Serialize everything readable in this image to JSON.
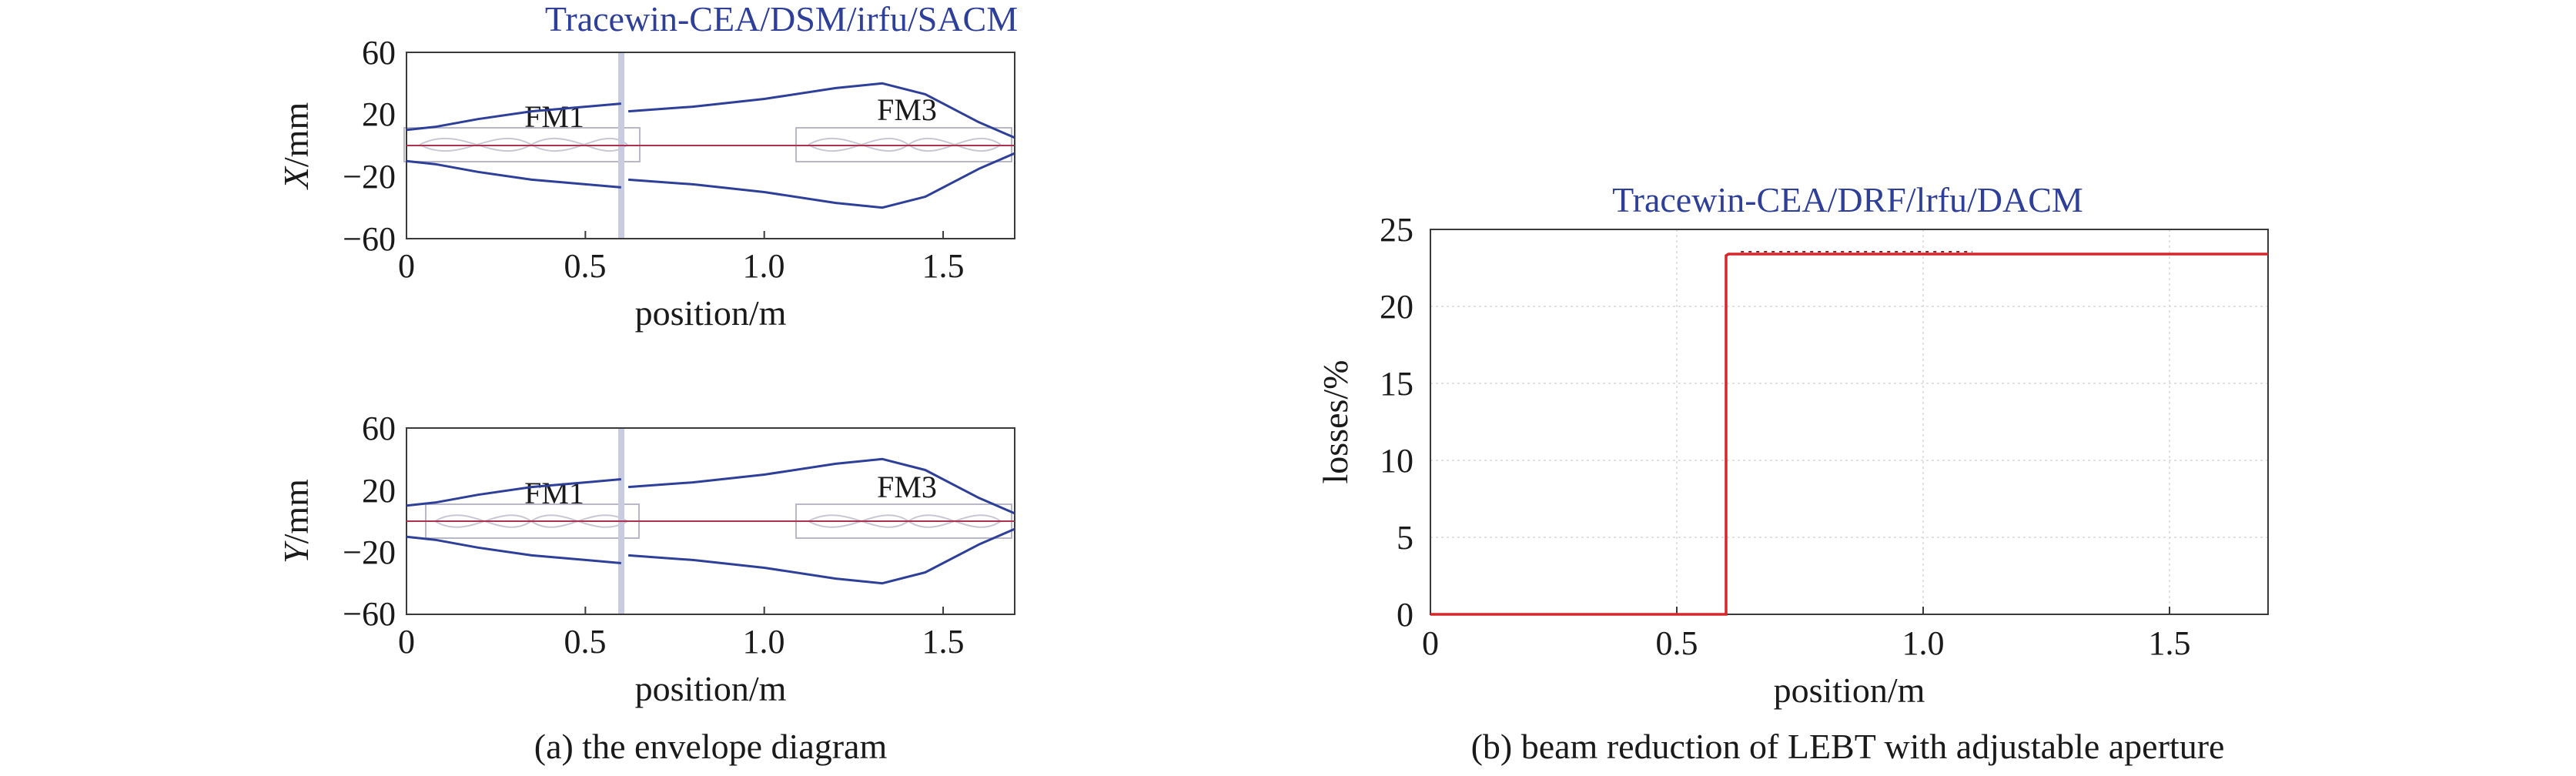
{
  "chart_data": [
    {
      "type": "line",
      "title": "Tracewin-CEA/DSM/irfu/SACM",
      "xlabel": "position/m",
      "ylabel_italic": "X",
      "ylabel_rest": "/mm",
      "xlim": [
        0,
        1.7
      ],
      "ylim": [
        -60,
        60
      ],
      "xticks": [
        "0",
        "0.5",
        "1.0",
        "1.5"
      ],
      "yticks": [
        "60",
        "20",
        "−20",
        "−60"
      ],
      "annotations": [
        "FM1",
        "FM3"
      ],
      "series": [
        {
          "x": [
            0,
            0.08,
            0.2,
            0.35,
            0.5,
            0.6
          ],
          "values": [
            10,
            12,
            17,
            22,
            25,
            27
          ]
        },
        {
          "x": [
            0.62,
            0.8,
            1.0,
            1.2,
            1.33,
            1.45,
            1.6,
            1.7
          ],
          "values": [
            22,
            25,
            30,
            37,
            40,
            33,
            15,
            5
          ]
        },
        {
          "x": [
            0,
            0.08,
            0.2,
            0.35,
            0.5,
            0.6
          ],
          "values": [
            -10,
            -12,
            -17,
            -22,
            -25,
            -27
          ]
        },
        {
          "x": [
            0.62,
            0.8,
            1.0,
            1.2,
            1.33,
            1.45,
            1.6,
            1.7
          ],
          "values": [
            -22,
            -25,
            -30,
            -37,
            -40,
            -33,
            -15,
            -5
          ]
        }
      ],
      "caption": ""
    },
    {
      "type": "line",
      "title": "",
      "xlabel": "position/m",
      "ylabel_italic": "Y",
      "ylabel_rest": "/mm",
      "xlim": [
        0,
        1.7
      ],
      "ylim": [
        -60,
        60
      ],
      "xticks": [
        "0",
        "0.5",
        "1.0",
        "1.5"
      ],
      "yticks": [
        "60",
        "20",
        "−20",
        "−60"
      ],
      "annotations": [
        "FM1",
        "FM3"
      ],
      "series": [
        {
          "x": [
            0,
            0.08,
            0.2,
            0.35,
            0.5,
            0.6
          ],
          "values": [
            10,
            12,
            17,
            22,
            25,
            27
          ]
        },
        {
          "x": [
            0.62,
            0.8,
            1.0,
            1.2,
            1.33,
            1.45,
            1.6,
            1.7
          ],
          "values": [
            22,
            25,
            30,
            37,
            40,
            33,
            15,
            5
          ]
        },
        {
          "x": [
            0,
            0.08,
            0.2,
            0.35,
            0.5,
            0.6
          ],
          "values": [
            -10,
            -12,
            -17,
            -22,
            -25,
            -27
          ]
        },
        {
          "x": [
            0.62,
            0.8,
            1.0,
            1.2,
            1.33,
            1.45,
            1.6,
            1.7
          ],
          "values": [
            -22,
            -25,
            -30,
            -37,
            -40,
            -33,
            -15,
            -5
          ]
        }
      ],
      "caption": "(a) the envelope diagram"
    },
    {
      "type": "line",
      "title": "Tracewin-CEA/DRF/lrfu/DACM",
      "xlabel": "position/m",
      "ylabel": "losses/%",
      "xlim": [
        0,
        1.7
      ],
      "ylim": [
        0,
        25
      ],
      "xticks": [
        "0",
        "0.5",
        "1.0",
        "1.5"
      ],
      "yticks": [
        "25",
        "20",
        "15",
        "10",
        "5",
        "0"
      ],
      "grid": true,
      "series": [
        {
          "x": [
            0,
            0.6,
            0.6,
            0.605,
            1.7
          ],
          "values": [
            0,
            0,
            23.3,
            23.4,
            23.4
          ]
        }
      ],
      "caption": "(b) beam reduction of LEBT with adjustable aperture"
    }
  ],
  "colors": {
    "envelope": "#2e3f9a",
    "centerline": "#b03050",
    "losses": "#d62728",
    "element_outline": "#b8b8c8",
    "title": "#2e3f9a"
  }
}
